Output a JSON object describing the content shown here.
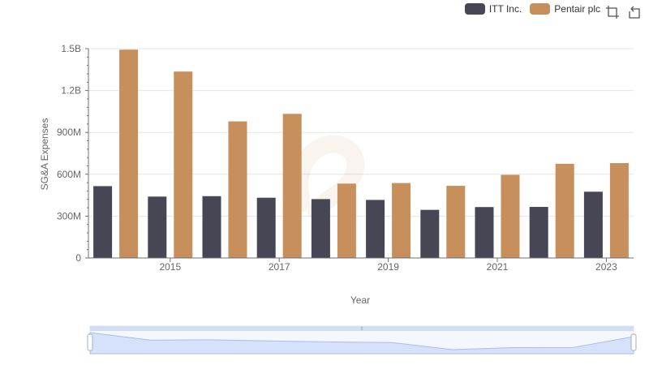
{
  "legend": {
    "items": [
      {
        "label": "ITT Inc.",
        "color": "#464655"
      },
      {
        "label": "Pentair plc",
        "color": "#c68f5b"
      }
    ]
  },
  "toolbox": {
    "icons": [
      "brush-rect-icon",
      "reset-icon"
    ]
  },
  "colors": {
    "accent": "#c68f5b",
    "dark": "#464655",
    "zoom_fill": "#d6e2fb"
  },
  "chart_data": {
    "type": "bar",
    "title": "",
    "xlabel": "Year",
    "ylabel": "SG&A Expenses",
    "categories": [
      "2014",
      "2015",
      "2016",
      "2017",
      "2018",
      "2019",
      "2020",
      "2021",
      "2022",
      "2023"
    ],
    "x_tick_labels": [
      "2015",
      "2017",
      "2019",
      "2021",
      "2023"
    ],
    "y_tick_labels": [
      "0",
      "300M",
      "600M",
      "900M",
      "1.2B",
      "1.5B"
    ],
    "ylim": [
      0,
      1500000000
    ],
    "series": [
      {
        "name": "ITT Inc.",
        "values": [
          515000000,
          440000000,
          443000000,
          432000000,
          422000000,
          416000000,
          345000000,
          365000000,
          366000000,
          475000000
        ]
      },
      {
        "name": "Pentair plc",
        "values": [
          1493000000,
          1336000000,
          979000000,
          1033000000,
          533000000,
          537000000,
          517000000,
          596000000,
          675000000,
          680000000
        ]
      }
    ]
  }
}
